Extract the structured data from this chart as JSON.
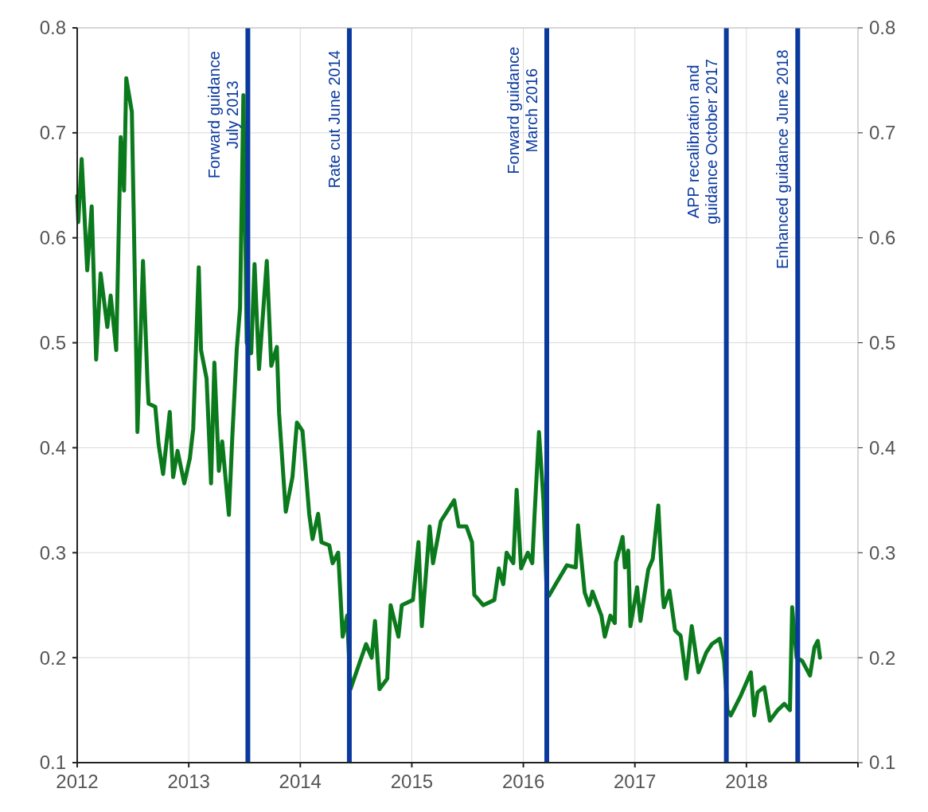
{
  "chart_data": {
    "type": "line",
    "xlim": [
      2012,
      2019
    ],
    "xticks": [
      2012,
      2013,
      2014,
      2015,
      2016,
      2017,
      2018,
      {
        "value": 2019,
        "label": null
      }
    ],
    "ylim": [
      0.1,
      0.8
    ],
    "yticks": [
      0.1,
      0.2,
      0.3,
      0.4,
      0.5,
      0.6,
      0.7,
      0.8
    ],
    "y2lim": [
      0.1,
      0.8
    ],
    "y2ticks": [
      0.1,
      0.2,
      0.3,
      0.4,
      0.5,
      0.6,
      0.7,
      0.8
    ],
    "grid": true,
    "x": [
      2012.0,
      2012.01,
      2012.04,
      2012.09,
      2012.13,
      2012.17,
      2012.21,
      2012.27,
      2012.3,
      2012.35,
      2012.39,
      2012.42,
      2012.44,
      2012.49,
      2012.53,
      2012.54,
      2012.59,
      2012.63,
      2012.64,
      2012.7,
      2012.73,
      2012.77,
      2012.83,
      2012.86,
      2012.9,
      2012.96,
      2013.01,
      2013.04,
      2013.09,
      2013.11,
      2013.16,
      2013.2,
      2013.23,
      2013.27,
      2013.3,
      2013.36,
      2013.39,
      2013.43,
      2013.46,
      2013.49,
      2013.52,
      2013.56,
      2013.59,
      2013.63,
      2013.7,
      2013.74,
      2013.79,
      2013.81,
      2013.87,
      2013.93,
      2013.97,
      2014.02,
      2014.08,
      2014.11,
      2014.16,
      2014.19,
      2014.26,
      2014.29,
      2014.34,
      2014.36,
      2014.38,
      2014.42,
      2014.45,
      2014.59,
      2014.64,
      2014.67,
      2014.71,
      2014.78,
      2014.81,
      2014.88,
      2014.91,
      2015.01,
      2015.06,
      2015.09,
      2015.16,
      2015.19,
      2015.26,
      2015.38,
      2015.42,
      2015.49,
      2015.54,
      2015.56,
      2015.64,
      2015.74,
      2015.78,
      2015.82,
      2015.85,
      2015.91,
      2015.94,
      2015.98,
      2016.04,
      2016.08,
      2016.1,
      2016.14,
      2016.18,
      2016.21,
      2016.23,
      2016.29,
      2016.39,
      2016.47,
      2016.49,
      2016.55,
      2016.59,
      2016.62,
      2016.7,
      2016.73,
      2016.78,
      2016.82,
      2016.83,
      2016.89,
      2016.91,
      2016.94,
      2016.96,
      2017.02,
      2017.05,
      2017.12,
      2017.16,
      2017.21,
      2017.25,
      2017.26,
      2017.31,
      2017.36,
      2017.41,
      2017.46,
      2017.51,
      2017.57,
      2017.64,
      2017.69,
      2017.76,
      2017.8,
      2017.83,
      2017.86,
      2017.95,
      2018.04,
      2018.07,
      2018.1,
      2018.16,
      2018.21,
      2018.28,
      2018.34,
      2018.39,
      2018.41,
      2018.45,
      2018.5,
      2018.57,
      2018.61,
      2018.64,
      2018.66
    ],
    "series": [
      {
        "color": "#0b7a1c",
        "values": [
          0.64,
          0.615,
          0.675,
          0.569,
          0.63,
          0.484,
          0.566,
          0.515,
          0.545,
          0.493,
          0.696,
          0.645,
          0.752,
          0.72,
          0.484,
          0.415,
          0.578,
          0.463,
          0.442,
          0.439,
          0.403,
          0.375,
          0.434,
          0.372,
          0.397,
          0.366,
          0.39,
          0.418,
          0.572,
          0.493,
          0.466,
          0.366,
          0.481,
          0.378,
          0.406,
          0.336,
          0.409,
          0.493,
          0.533,
          0.736,
          0.5,
          0.49,
          0.575,
          0.475,
          0.578,
          0.478,
          0.496,
          0.433,
          0.339,
          0.372,
          0.424,
          0.416,
          0.337,
          0.313,
          0.337,
          0.31,
          0.307,
          0.29,
          0.3,
          0.26,
          0.22,
          0.24,
          0.17,
          0.213,
          0.2,
          0.235,
          0.17,
          0.18,
          0.25,
          0.22,
          0.25,
          0.255,
          0.31,
          0.23,
          0.325,
          0.29,
          0.33,
          0.35,
          0.325,
          0.325,
          0.31,
          0.26,
          0.25,
          0.255,
          0.285,
          0.27,
          0.3,
          0.29,
          0.36,
          0.285,
          0.3,
          0.29,
          0.335,
          0.415,
          0.35,
          0.26,
          0.259,
          0.27,
          0.288,
          0.286,
          0.326,
          0.262,
          0.25,
          0.263,
          0.24,
          0.22,
          0.24,
          0.233,
          0.291,
          0.315,
          0.286,
          0.302,
          0.23,
          0.267,
          0.235,
          0.284,
          0.294,
          0.345,
          0.259,
          0.248,
          0.264,
          0.226,
          0.221,
          0.18,
          0.23,
          0.186,
          0.205,
          0.213,
          0.218,
          0.197,
          0.15,
          0.145,
          0.164,
          0.186,
          0.145,
          0.167,
          0.172,
          0.14,
          0.15,
          0.156,
          0.15,
          0.248,
          0.2,
          0.197,
          0.183,
          0.21,
          0.216,
          0.2
        ]
      }
    ],
    "ref_lines": [
      {
        "axis": "x",
        "value": 2013.53,
        "label": "Forward  guidance\nJuly  2013",
        "color": "#0a3a9e"
      },
      {
        "axis": "x",
        "value": 2014.44,
        "label": "Rate cut June 2014",
        "color": "#0a3a9e"
      },
      {
        "axis": "x",
        "value": 2016.21,
        "label": "Forward guidance\nMarch  2016",
        "color": "#0a3a9e"
      },
      {
        "axis": "x",
        "value": 2017.82,
        "label": "APP recalibration and\nguidance  October  2017",
        "color": "#0a3a9e"
      },
      {
        "axis": "x",
        "value": 2018.46,
        "label": "Enhanced guidance June 2018",
        "color": "#0a3a9e"
      }
    ]
  }
}
